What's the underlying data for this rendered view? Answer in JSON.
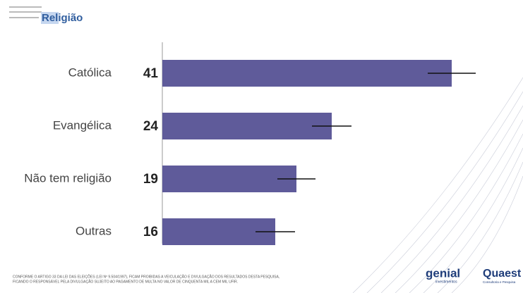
{
  "chart_data": {
    "type": "bar",
    "orientation": "horizontal",
    "title": "Religião",
    "categories": [
      "Católica",
      "Evangélica",
      "Não tem religião",
      "Outras"
    ],
    "values": [
      41,
      24,
      19,
      16
    ],
    "errors": [
      3.4,
      2.8,
      2.7,
      2.8
    ],
    "color": "#5f5b9a",
    "xlim": [
      0,
      50
    ]
  },
  "footer": {
    "disclaimer": [
      "CONFORME O ARTIGO 33 DA LEI DAS ELEIÇÕES (LEI Nº 9.504/1997), FICAM PROIBIDAS A VEICULAÇÃO E DIVULGAÇÃO DOS RESULTADOS DESTA PESQUISA,",
      "FICANDO O RESPONSÁVEL PELA DIVULGAÇÃO SUJEITO AO PAGAMENTO DE MULTA NO VALOR DE CINQUENTA MIL A CEM MIL UFIR."
    ],
    "logos": [
      {
        "name": "genial",
        "sub": "investimentos"
      },
      {
        "name": "Quaest",
        "sub": "Consultoria e Pesquisa"
      }
    ]
  }
}
